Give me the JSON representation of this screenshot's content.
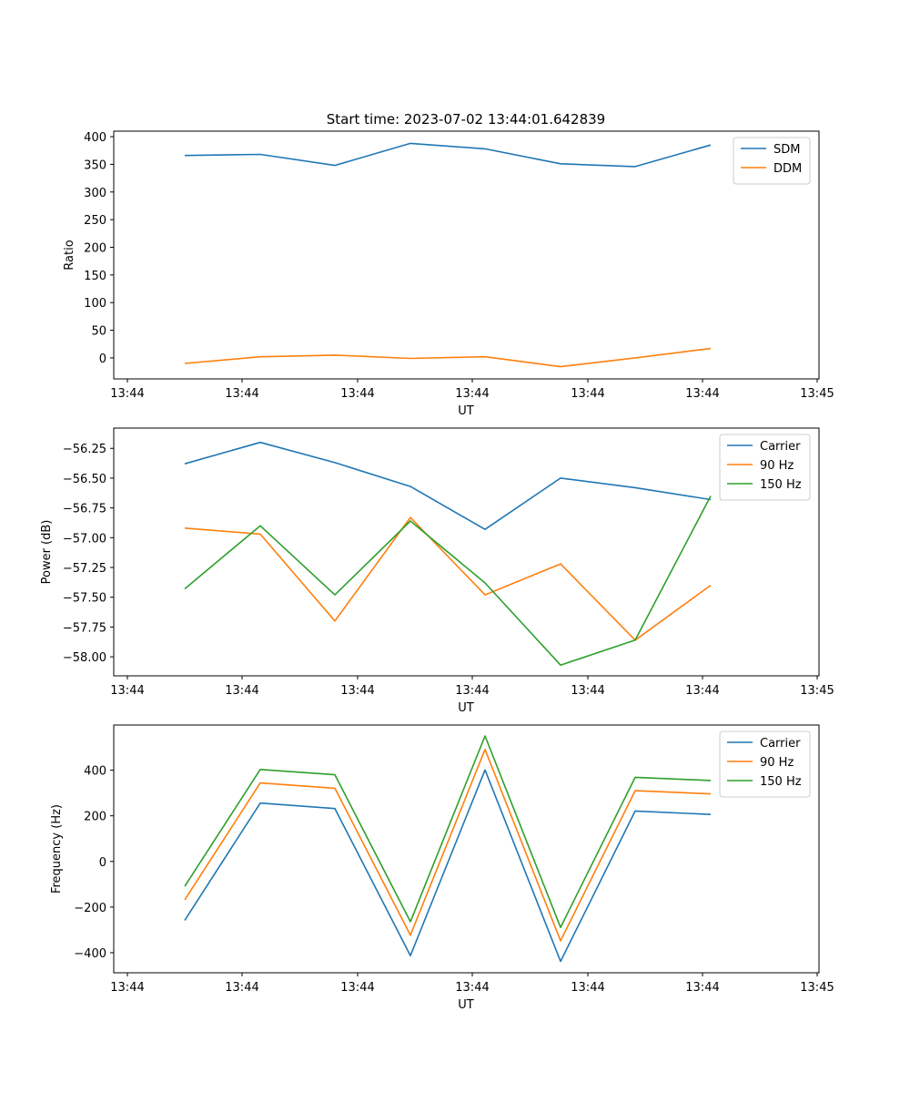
{
  "chart_data": [
    {
      "type": "line",
      "title": "Start time: 2023-07-02 13:44:01.642839",
      "xlabel": "UT",
      "ylabel": "Ratio",
      "x_tick_labels": [
        "13:44",
        "13:44",
        "13:44",
        "13:44",
        "13:44",
        "13:44",
        "13:44",
        "13:45"
      ],
      "y_ticks": [
        0,
        50,
        100,
        150,
        200,
        250,
        300,
        350,
        400
      ],
      "ylim": [
        -38,
        410
      ],
      "legend_position": "top-right",
      "series": [
        {
          "name": "SDM",
          "color": "#1f77b4",
          "values": [
            366,
            368,
            348,
            388,
            378,
            351,
            346,
            385
          ]
        },
        {
          "name": "DDM",
          "color": "#ff7f0e",
          "values": [
            -10,
            2,
            5,
            -1,
            2,
            -16,
            0,
            17
          ]
        }
      ]
    },
    {
      "type": "line",
      "title": "",
      "xlabel": "UT",
      "ylabel": "Power (dB)",
      "x_tick_labels": [
        "13:44",
        "13:44",
        "13:44",
        "13:44",
        "13:44",
        "13:44",
        "13:44",
        "13:45"
      ],
      "y_ticks": [
        -56.25,
        -56.5,
        -56.75,
        -57.0,
        -57.25,
        -57.5,
        -57.75,
        -58.0
      ],
      "y_tick_labels": [
        "−56.25",
        "−56.50",
        "−56.75",
        "−57.00",
        "−57.25",
        "−57.50",
        "−57.75",
        "−58.00"
      ],
      "ylim": [
        -58.16,
        -56.08
      ],
      "legend_position": "top-right",
      "series": [
        {
          "name": "Carrier",
          "color": "#1f77b4",
          "values": [
            -56.38,
            -56.2,
            -56.37,
            -56.57,
            -56.93,
            -56.5,
            -56.58,
            -56.68
          ]
        },
        {
          "name": "90 Hz",
          "color": "#ff7f0e",
          "values": [
            -56.92,
            -56.97,
            -57.7,
            -56.83,
            -57.48,
            -57.22,
            -57.86,
            -57.4
          ]
        },
        {
          "name": "150 Hz",
          "color": "#2ca02c",
          "values": [
            -57.43,
            -56.9,
            -57.48,
            -56.86,
            -57.38,
            -58.07,
            -57.86,
            -56.65
          ]
        }
      ]
    },
    {
      "type": "line",
      "title": "",
      "xlabel": "UT",
      "ylabel": "Frequency (Hz)",
      "x_tick_labels": [
        "13:44",
        "13:44",
        "13:44",
        "13:44",
        "13:44",
        "13:44",
        "13:44",
        "13:45"
      ],
      "y_ticks": [
        -400,
        -200,
        0,
        200,
        400
      ],
      "y_tick_labels": [
        "−400",
        "−200",
        "0",
        "200",
        "400"
      ],
      "ylim": [
        -488,
        598
      ],
      "legend_position": "top-right",
      "series": [
        {
          "name": "Carrier",
          "color": "#1f77b4",
          "values": [
            -258,
            256,
            232,
            -413,
            401,
            -438,
            221,
            206
          ]
        },
        {
          "name": "90 Hz",
          "color": "#ff7f0e",
          "values": [
            -168,
            344,
            321,
            -323,
            491,
            -348,
            310,
            296
          ]
        },
        {
          "name": "150 Hz",
          "color": "#2ca02c",
          "values": [
            -109,
            403,
            380,
            -264,
            550,
            -289,
            369,
            355
          ]
        }
      ]
    }
  ]
}
